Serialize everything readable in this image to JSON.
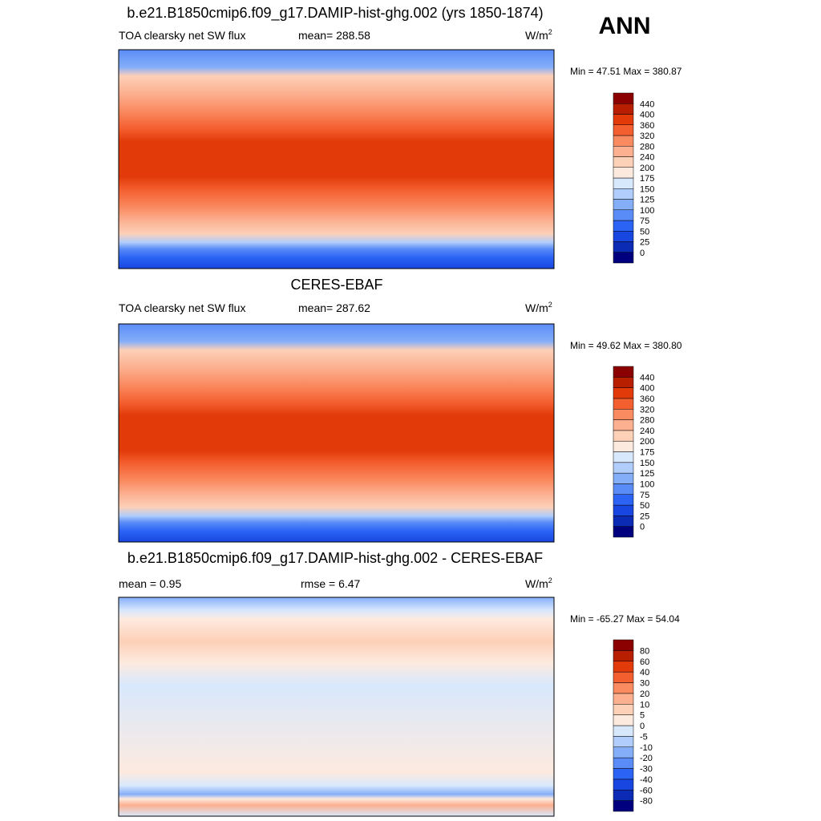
{
  "header": {
    "season": "ANN"
  },
  "colorbar_colors": [
    "#00007f",
    "#0b2bb4",
    "#1846e0",
    "#2b63f5",
    "#5a8cf8",
    "#85aef9",
    "#b0cdfb",
    "#d8e8fc",
    "#fdeadf",
    "#fdd0b8",
    "#fcb090",
    "#fa8a60",
    "#f45f30",
    "#e23a08",
    "#b81e00",
    "#8b0000"
  ],
  "panels": [
    {
      "title": "b.e21.B1850cmip6.f09_g17.DAMIP-hist-ghg.002 (yrs 1850-1874)",
      "left": "TOA clearsky net SW flux",
      "stat": "mean= 288.58",
      "units": {
        "base": "W/m",
        "sup": "2"
      },
      "minmax": "Min =  47.51 Max = 380.87",
      "levels": [
        0,
        25,
        50,
        75,
        100,
        125,
        150,
        175,
        200,
        240,
        280,
        320,
        360,
        400,
        440
      ]
    },
    {
      "title": "CERES-EBAF",
      "left": "TOA clearsky net SW flux",
      "stat": "mean= 287.62",
      "units": {
        "base": "W/m",
        "sup": "2"
      },
      "minmax": "Min =  49.62 Max = 380.80",
      "levels": [
        0,
        25,
        50,
        75,
        100,
        125,
        150,
        175,
        200,
        240,
        280,
        320,
        360,
        400,
        440
      ]
    },
    {
      "title": "b.e21.B1850cmip6.f09_g17.DAMIP-hist-ghg.002 - CERES-EBAF",
      "left": "mean =   0.95",
      "stat": "rmse =   6.47",
      "units": {
        "base": "W/m",
        "sup": "2"
      },
      "minmax": "Min = -65.27 Max =  54.04",
      "levels": [
        -80,
        -60,
        -40,
        -30,
        -20,
        -10,
        -5,
        0,
        5,
        10,
        20,
        30,
        40,
        60,
        80
      ]
    }
  ]
}
